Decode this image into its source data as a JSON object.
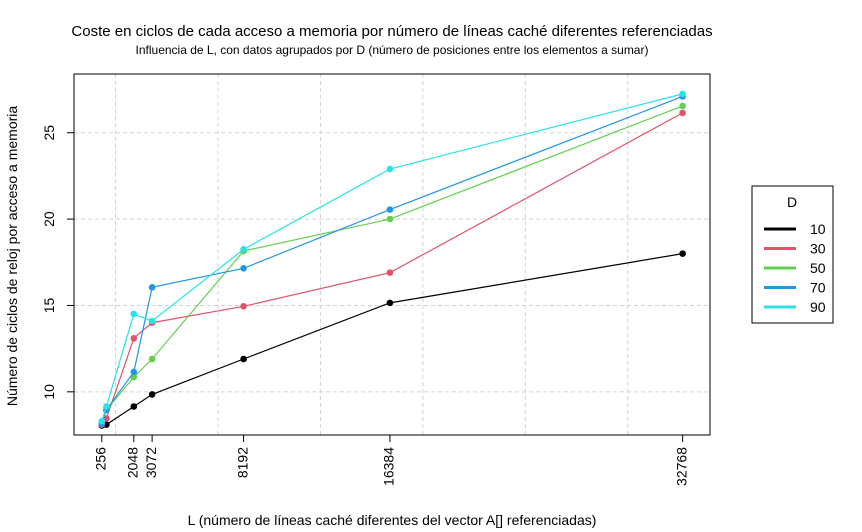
{
  "chart_data": {
    "type": "line",
    "title": "Coste en ciclos de cada acceso a memoria por número de líneas caché diferentes referenciadas",
    "subtitle": "Influencia de L, con datos agrupados por D (número de posiciones entre los elementos a sumar)",
    "xlabel": "L (número de líneas caché diferentes del vector A[] referenciadas)",
    "ylabel": "Número de ciclos de reloj por acceso a memoria",
    "x": [
      256,
      512,
      2048,
      3072,
      8192,
      16384,
      32768
    ],
    "x_ticks": [
      256,
      2048,
      3072,
      8192,
      16384,
      32768
    ],
    "y_ticks": [
      10,
      15,
      20,
      25
    ],
    "xlim": [
      -1300,
      34300
    ],
    "ylim": [
      7.5,
      28.4
    ],
    "grid": true,
    "legend": {
      "title": "D",
      "position": "right"
    },
    "series": [
      {
        "name": "10",
        "color": "#000000",
        "values": [
          8.05,
          8.1,
          9.15,
          9.85,
          11.9,
          15.15,
          18.0
        ]
      },
      {
        "name": "30",
        "color": "#DF536B",
        "values": [
          8.1,
          8.45,
          13.1,
          14.0,
          14.95,
          16.9,
          26.15
        ]
      },
      {
        "name": "50",
        "color": "#61D04F",
        "values": [
          8.2,
          8.95,
          10.85,
          11.9,
          18.15,
          20.0,
          26.55
        ]
      },
      {
        "name": "70",
        "color": "#2297E6",
        "values": [
          8.15,
          8.95,
          11.15,
          16.05,
          17.15,
          20.55,
          27.1
        ]
      },
      {
        "name": "90",
        "color": "#28E2E5",
        "values": [
          8.3,
          9.15,
          14.5,
          14.1,
          18.25,
          22.9,
          27.25
        ]
      }
    ]
  }
}
